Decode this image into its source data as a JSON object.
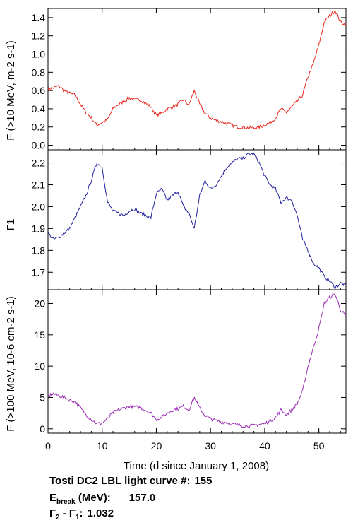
{
  "chart_data": [
    {
      "type": "line",
      "ylabel": "F (>10 MeV, m-2 s-1)",
      "ylim": [
        -0.05,
        1.5
      ],
      "yticks": [
        0.0,
        0.2,
        0.4,
        0.6,
        0.8,
        1.0,
        1.2,
        1.4
      ],
      "color": "#e8261c",
      "series": [
        {
          "x": [
            0,
            1,
            2,
            3,
            4,
            5,
            6,
            7,
            8,
            9,
            10,
            11,
            12,
            13,
            14,
            15,
            16,
            17,
            18,
            19,
            20,
            21,
            22,
            23,
            24,
            25,
            26,
            27,
            28,
            29,
            30,
            31,
            32,
            33,
            34,
            35,
            36,
            37,
            38,
            39,
            40,
            41,
            42,
            43,
            44,
            45,
            46,
            47,
            48,
            49,
            50,
            51,
            52,
            53,
            54,
            55
          ],
          "y": [
            0.62,
            0.63,
            0.65,
            0.6,
            0.57,
            0.55,
            0.45,
            0.36,
            0.3,
            0.22,
            0.25,
            0.28,
            0.4,
            0.45,
            0.48,
            0.52,
            0.5,
            0.5,
            0.46,
            0.42,
            0.33,
            0.35,
            0.4,
            0.42,
            0.45,
            0.5,
            0.44,
            0.6,
            0.45,
            0.35,
            0.3,
            0.27,
            0.26,
            0.24,
            0.22,
            0.2,
            0.2,
            0.19,
            0.19,
            0.2,
            0.22,
            0.25,
            0.3,
            0.4,
            0.36,
            0.42,
            0.48,
            0.55,
            0.75,
            0.9,
            1.1,
            1.35,
            1.42,
            1.48,
            1.35,
            1.32
          ]
        }
      ]
    },
    {
      "type": "line",
      "ylabel": "Γ1",
      "ylim": [
        1.62,
        2.26
      ],
      "yticks": [
        1.7,
        1.8,
        1.9,
        2.0,
        2.1,
        2.2
      ],
      "color": "#21219c",
      "series": [
        {
          "x": [
            0,
            1,
            2,
            3,
            4,
            5,
            6,
            7,
            8,
            9,
            10,
            11,
            12,
            13,
            14,
            15,
            16,
            17,
            18,
            19,
            20,
            21,
            22,
            23,
            24,
            25,
            26,
            27,
            28,
            29,
            30,
            31,
            32,
            33,
            34,
            35,
            36,
            37,
            38,
            39,
            40,
            41,
            42,
            43,
            44,
            45,
            46,
            47,
            48,
            49,
            50,
            51,
            52,
            53,
            54,
            55
          ],
          "y": [
            1.88,
            1.85,
            1.86,
            1.88,
            1.9,
            1.95,
            2.0,
            2.05,
            2.12,
            2.2,
            2.18,
            2.02,
            1.98,
            1.97,
            1.96,
            1.98,
            1.99,
            1.97,
            1.96,
            1.95,
            2.06,
            2.08,
            2.03,
            2.05,
            2.07,
            2.0,
            1.97,
            1.9,
            2.05,
            2.12,
            2.08,
            2.1,
            2.14,
            2.18,
            2.2,
            2.22,
            2.22,
            2.24,
            2.24,
            2.2,
            2.14,
            2.1,
            2.08,
            2.02,
            2.04,
            2.03,
            1.96,
            1.85,
            1.8,
            1.74,
            1.72,
            1.68,
            1.66,
            1.63,
            1.65,
            1.64
          ]
        }
      ]
    },
    {
      "type": "line",
      "ylabel": "F (>100 MeV, 10-6 cm-2 s-1)",
      "ylim": [
        -0.7,
        22.2
      ],
      "yticks": [
        0,
        5,
        10,
        15,
        20
      ],
      "color": "#9a2bb5",
      "series": [
        {
          "x": [
            0,
            1,
            2,
            3,
            4,
            5,
            6,
            7,
            8,
            9,
            10,
            11,
            12,
            13,
            14,
            15,
            16,
            17,
            18,
            19,
            20,
            21,
            22,
            23,
            24,
            25,
            26,
            27,
            28,
            29,
            30,
            31,
            32,
            33,
            34,
            35,
            36,
            37,
            38,
            39,
            40,
            41,
            42,
            43,
            44,
            45,
            46,
            47,
            48,
            49,
            50,
            51,
            52,
            53,
            54,
            55
          ],
          "y": [
            5.2,
            5.6,
            5.3,
            5.0,
            4.6,
            4.3,
            3.3,
            2.3,
            1.5,
            0.8,
            0.9,
            1.6,
            2.6,
            3.0,
            3.3,
            3.6,
            3.5,
            3.4,
            3.0,
            2.5,
            1.5,
            1.8,
            2.5,
            3.0,
            3.2,
            3.6,
            3.0,
            5.0,
            3.3,
            2.1,
            1.6,
            1.3,
            1.1,
            1.0,
            0.8,
            0.6,
            0.5,
            0.5,
            0.5,
            0.7,
            0.8,
            1.3,
            1.8,
            3.0,
            2.3,
            3.0,
            4.0,
            6.0,
            10.0,
            13.0,
            16.0,
            20.0,
            21.0,
            21.5,
            19.0,
            18.0
          ]
        }
      ]
    }
  ],
  "x_axis": {
    "label": "Time (d since January 1, 2008)",
    "xlim": [
      0,
      55
    ],
    "ticks": [
      "0",
      "10",
      "20",
      "30",
      "40",
      "50"
    ]
  },
  "info": {
    "title_label": "Tosti DC2 LBL light curve #:",
    "title_value": "155",
    "ebreak_label": "E",
    "ebreak_sub": "break",
    "ebreak_unit": " (MeV):",
    "ebreak_value": "157.0",
    "gamma_label": "Γ",
    "gamma_sub2": "2",
    "gamma_mid": " - Γ",
    "gamma_sub1": "1",
    "gamma_colon": ":",
    "gamma_value": "1.032"
  }
}
